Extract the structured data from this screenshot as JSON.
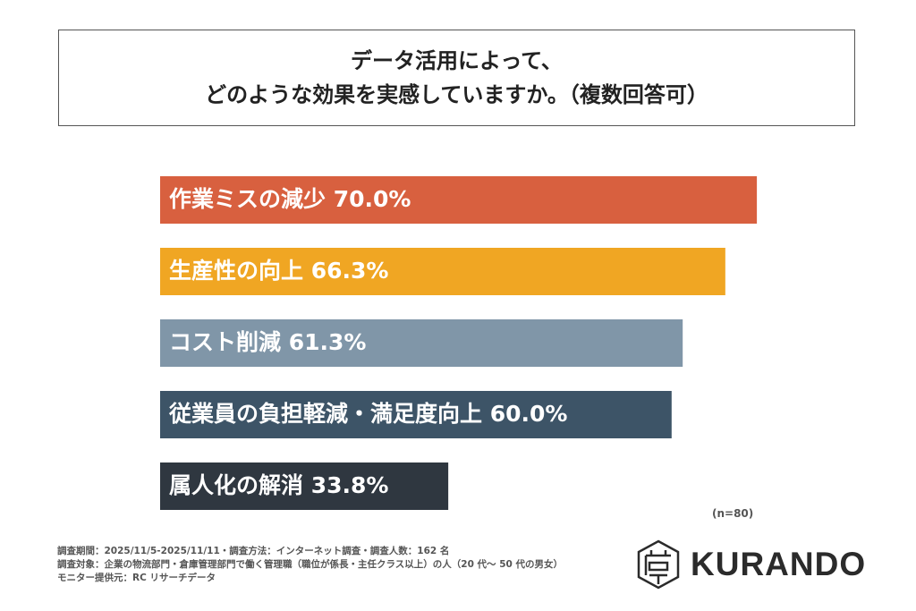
{
  "title": {
    "line1": "データ活用によって、",
    "line2": "どのような効果を実感していますか。（複数回答可）"
  },
  "chart_data": {
    "type": "bar",
    "orientation": "horizontal",
    "categories": [
      "作業ミスの減少",
      "生産性の向上",
      "コスト削減",
      "従業員の負担軽減・満足度向上",
      "属人化の解消"
    ],
    "values": [
      70.0,
      66.3,
      61.3,
      60.0,
      33.8
    ],
    "labels": [
      "作業ミスの減少  70.0%",
      "生産性の向上  66.3%",
      "コスト削減  61.3%",
      "従業員の負担軽減・満足度向上  60.0%",
      "属人化の解消  33.8%"
    ],
    "colors": [
      "#d8603f",
      "#f0a623",
      "#8096a8",
      "#3d5467",
      "#2f3740"
    ],
    "unit": "%",
    "xlim": [
      0,
      100
    ],
    "grid": false,
    "legend": "none"
  },
  "sample_size": "(n=80)",
  "footer": {
    "line1": "調査期間：2025/11/5-2025/11/11・調査方法：インターネット調査・調査人数：162 名",
    "line2": "調査対象：企業の物流部門・倉庫管理部門で働く管理職（職位が係長・主任クラス以上）の人（20 代～ 50 代の男女）",
    "line3": "モニター提供元：RC リサーチデータ"
  },
  "logo": {
    "text": "KURANDO",
    "icon": "kurando-hexagon-icon"
  }
}
